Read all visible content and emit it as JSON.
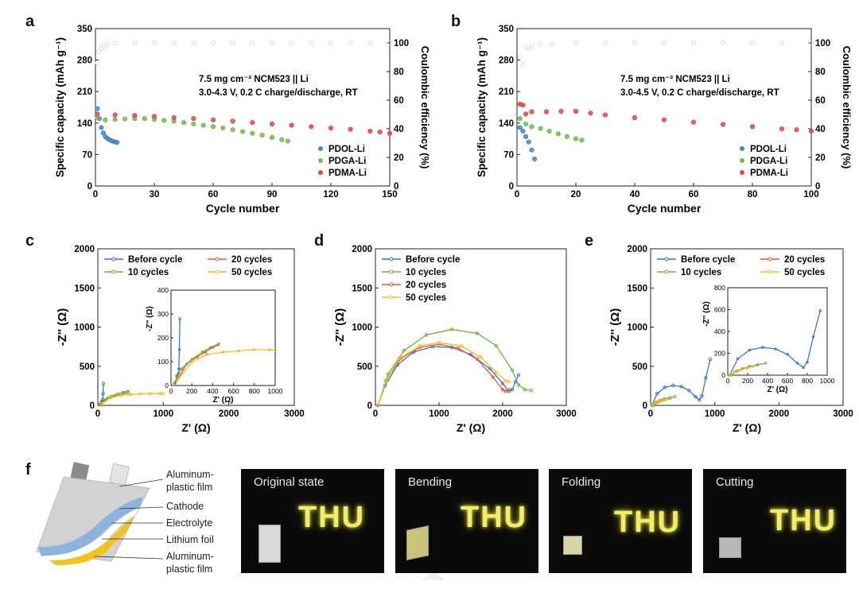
{
  "panel_labels": {
    "a": "a",
    "b": "b",
    "c": "c",
    "d": "d",
    "e": "e",
    "f": "f"
  },
  "chart_data": [
    {
      "id": "a",
      "type": "scatter",
      "xlabel": "Cycle number",
      "ylabel": "Specific capacity (mAh g⁻¹)",
      "y2label": "Coulombic efficiency (%)",
      "xlim": [
        0,
        150
      ],
      "ylim": [
        0,
        350
      ],
      "y2lim": [
        0,
        110
      ],
      "xticks": [
        0,
        30,
        60,
        90,
        120,
        150
      ],
      "yticks": [
        0,
        70,
        140,
        210,
        280,
        350
      ],
      "y2ticks": [
        0,
        20,
        40,
        60,
        80,
        100
      ],
      "annotation": [
        "7.5 mg cm⁻² NCM523 || Li",
        "3.0-4.3 V, 0.2 C charge/discharge, RT"
      ],
      "legend_position": "bottom-right",
      "series": [
        {
          "name": "PDOL-Li",
          "color": "#4a86c8",
          "x": [
            1,
            2,
            3,
            4,
            5,
            6,
            7,
            8,
            9,
            10,
            11
          ],
          "y": [
            172,
            150,
            130,
            118,
            110,
            106,
            103,
            101,
            99,
            98,
            97
          ]
        },
        {
          "name": "PDGA-Li",
          "color": "#76b84e",
          "x": [
            1,
            5,
            10,
            15,
            20,
            25,
            30,
            35,
            40,
            45,
            50,
            55,
            60,
            65,
            70,
            75,
            80,
            85,
            90,
            95,
            98
          ],
          "y": [
            152,
            147,
            148,
            149,
            150,
            150,
            148,
            146,
            144,
            141,
            138,
            135,
            132,
            129,
            125,
            121,
            117,
            113,
            108,
            103,
            100
          ]
        },
        {
          "name": "PDMA-Li",
          "color": "#e0484c",
          "x": [
            1,
            10,
            20,
            30,
            40,
            50,
            60,
            70,
            80,
            90,
            100,
            110,
            120,
            130,
            140,
            145,
            150
          ],
          "y": [
            160,
            158,
            157,
            155,
            152,
            150,
            147,
            144,
            141,
            138,
            135,
            132,
            129,
            126,
            122,
            120,
            117
          ]
        }
      ],
      "ce_color": "#e8d8cc",
      "ce_x": [
        1,
        2,
        3,
        4,
        6,
        10,
        20,
        30,
        40,
        50,
        60,
        70,
        80,
        90,
        100,
        110,
        120,
        130,
        140,
        150
      ],
      "ce_y": [
        86,
        94,
        96,
        98,
        99,
        100,
        100,
        100,
        100,
        100,
        100,
        100,
        100,
        100,
        100,
        100,
        100,
        100,
        100,
        100
      ]
    },
    {
      "id": "b",
      "type": "scatter",
      "xlabel": "Cycle number",
      "ylabel": "Specific capacity (mAh g⁻¹)",
      "y2label": "Coulombic efficiency (%)",
      "xlim": [
        0,
        100
      ],
      "ylim": [
        0,
        350
      ],
      "y2lim": [
        0,
        110
      ],
      "xticks": [
        0,
        20,
        40,
        60,
        80,
        100
      ],
      "yticks": [
        0,
        70,
        140,
        210,
        280,
        350
      ],
      "y2ticks": [
        0,
        20,
        40,
        60,
        80,
        100
      ],
      "annotation": [
        "7.5 mg cm⁻² NCM523 || Li",
        "3.0-4.5 V, 0.2 C charge/discharge, RT"
      ],
      "legend_position": "bottom-right",
      "series": [
        {
          "name": "PDOL-Li",
          "color": "#4a86c8",
          "x": [
            1,
            2,
            3,
            4,
            5,
            6
          ],
          "y": [
            130,
            122,
            110,
            98,
            80,
            60
          ]
        },
        {
          "name": "PDGA-Li",
          "color": "#76b84e",
          "x": [
            1,
            3,
            5,
            8,
            11,
            14,
            17,
            20,
            22
          ],
          "y": [
            150,
            138,
            132,
            128,
            122,
            116,
            110,
            105,
            102
          ]
        },
        {
          "name": "PDMA-Li",
          "color": "#e0484c",
          "x": [
            1,
            2,
            3,
            5,
            10,
            15,
            20,
            25,
            30,
            40,
            50,
            60,
            70,
            80,
            90,
            95,
            100
          ],
          "y": [
            182,
            180,
            160,
            165,
            165,
            166,
            166,
            162,
            158,
            152,
            147,
            142,
            137,
            132,
            127,
            125,
            122
          ]
        }
      ],
      "ce_color": "#e8d8cc",
      "ce_x": [
        1,
        2,
        3,
        4,
        5,
        8,
        12,
        20,
        30,
        40,
        50,
        60,
        70,
        80,
        90,
        100
      ],
      "ce_y": [
        90,
        85,
        97,
        96,
        98,
        99,
        99,
        100,
        100,
        100,
        100,
        100,
        100,
        100,
        100,
        100
      ]
    },
    {
      "id": "c",
      "type": "line",
      "xlabel": "Z' (Ω)",
      "ylabel": "-Z'' (Ω)",
      "xlim": [
        0,
        3000
      ],
      "ylim": [
        0,
        2000
      ],
      "xticks": [
        0,
        1000,
        2000,
        3000
      ],
      "yticks": [
        0,
        500,
        1000,
        1500,
        2000
      ],
      "legend_position": "top",
      "legend_cols": 2,
      "series": [
        {
          "name": "Before cycle",
          "color": "#3e74c4",
          "x": [
            40,
            55,
            70,
            75,
            80,
            85
          ],
          "y": [
            10,
            40,
            50,
            70,
            150,
            280
          ]
        },
        {
          "name": "20 cycles",
          "color": "#e5533a",
          "x": [
            40,
            150,
            250,
            330,
            400,
            450
          ],
          "y": [
            10,
            90,
            120,
            140,
            160,
            170
          ]
        },
        {
          "name": "10 cycles",
          "color": "#6ab33e",
          "x": [
            30,
            100,
            200,
            300,
            380,
            460
          ],
          "y": [
            10,
            70,
            110,
            140,
            160,
            175
          ]
        },
        {
          "name": "50 cycles",
          "color": "#f5b822",
          "x": [
            60,
            200,
            350,
            500,
            650,
            800,
            950,
            1000
          ],
          "y": [
            20,
            100,
            130,
            140,
            145,
            150,
            150,
            148
          ]
        }
      ],
      "inset": {
        "xlim": [
          0,
          1000
        ],
        "ylim": [
          0,
          400
        ],
        "xticks": [
          0,
          200,
          400,
          600,
          800,
          1000
        ],
        "yticks": [
          0,
          100,
          200,
          300,
          400
        ],
        "xlabel": "Z' (Ω)",
        "ylabel": "-Z'' (Ω)"
      }
    },
    {
      "id": "d",
      "type": "line",
      "xlabel": "Z' (Ω)",
      "ylabel": "-Z'' (Ω)",
      "xlim": [
        0,
        3000
      ],
      "ylim": [
        0,
        2000
      ],
      "xticks": [
        0,
        1000,
        2000,
        3000
      ],
      "yticks": [
        0,
        500,
        1000,
        1500,
        2000
      ],
      "legend_position": "top-left",
      "legend_cols": 1,
      "series": [
        {
          "name": "Before cycle",
          "color": "#3e74c4",
          "x": [
            40,
            150,
            350,
            600,
            900,
            1200,
            1500,
            1800,
            2000,
            2100,
            2150,
            2200,
            2250
          ],
          "y": [
            0,
            250,
            520,
            680,
            750,
            740,
            650,
            470,
            280,
            180,
            200,
            300,
            390
          ]
        },
        {
          "name": "10 cycles",
          "color": "#6ab33e",
          "x": [
            40,
            200,
            450,
            800,
            1200,
            1600,
            1900,
            2150,
            2250,
            2350,
            2450
          ],
          "y": [
            0,
            400,
            700,
            900,
            970,
            920,
            760,
            450,
            260,
            200,
            190
          ]
        },
        {
          "name": "20 cycles",
          "color": "#e5533a",
          "x": [
            40,
            170,
            400,
            700,
            1000,
            1300,
            1600,
            1850,
            2000,
            2050,
            2100
          ],
          "y": [
            0,
            320,
            600,
            740,
            780,
            730,
            590,
            360,
            200,
            180,
            200
          ]
        },
        {
          "name": "50 cycles",
          "color": "#f5b822",
          "x": [
            40,
            160,
            380,
            700,
            1000,
            1350,
            1650,
            1900,
            2050,
            2100
          ],
          "y": [
            0,
            300,
            600,
            760,
            800,
            760,
            620,
            420,
            310,
            300
          ]
        }
      ]
    },
    {
      "id": "e",
      "type": "line",
      "xlabel": "Z' (Ω)",
      "ylabel": "-Z'' (Ω)",
      "xlim": [
        0,
        3000
      ],
      "ylim": [
        0,
        2000
      ],
      "xticks": [
        0,
        1000,
        2000,
        3000
      ],
      "yticks": [
        0,
        500,
        1000,
        1500,
        2000
      ],
      "legend_position": "top",
      "legend_cols": 2,
      "series": [
        {
          "name": "Before cycle",
          "color": "#3e74c4",
          "x": [
            20,
            100,
            220,
            350,
            480,
            600,
            700,
            760,
            800,
            860,
            930
          ],
          "y": [
            0,
            150,
            230,
            255,
            240,
            190,
            110,
            70,
            120,
            350,
            590
          ]
        },
        {
          "name": "20 cycles",
          "color": "#e5533a",
          "x": [
            30,
            80,
            150,
            220,
            300
          ],
          "y": [
            0,
            35,
            60,
            80,
            95
          ]
        },
        {
          "name": "10 cycles",
          "color": "#6ab33e",
          "x": [
            30,
            100,
            200,
            300,
            380
          ],
          "y": [
            0,
            40,
            70,
            95,
            110
          ]
        },
        {
          "name": "50 cycles",
          "color": "#f5b822",
          "x": [
            20,
            70,
            130,
            190,
            250
          ],
          "y": [
            0,
            30,
            50,
            65,
            80
          ]
        }
      ],
      "inset": {
        "xlim": [
          0,
          1000
        ],
        "ylim": [
          0,
          800
        ],
        "xticks": [
          0,
          200,
          400,
          600,
          800,
          1000
        ],
        "yticks": [
          0,
          200,
          400,
          600,
          800
        ],
        "xlabel": "Z' (Ω)",
        "ylabel": "-Z'' (Ω)"
      }
    }
  ],
  "pouch": {
    "labels": [
      "Aluminum-",
      "plastic film",
      "Cathode",
      "Electrolyte",
      "Lithium foil",
      "Aluminum-",
      "plastic film"
    ],
    "colors": {
      "shell": "#d2d2d2",
      "cathode": "#8db3dc",
      "electrolyte": "#ffffff",
      "lithium": "#f4c21c",
      "tab_dark": "#8c8c8c",
      "tab_light": "#e3e3e3"
    }
  },
  "photos": [
    {
      "caption": "Original state",
      "text": "THU"
    },
    {
      "caption": "Bending",
      "text": "THU"
    },
    {
      "caption": "Folding",
      "text": "THU"
    },
    {
      "caption": "Cutting",
      "text": "THU"
    }
  ]
}
